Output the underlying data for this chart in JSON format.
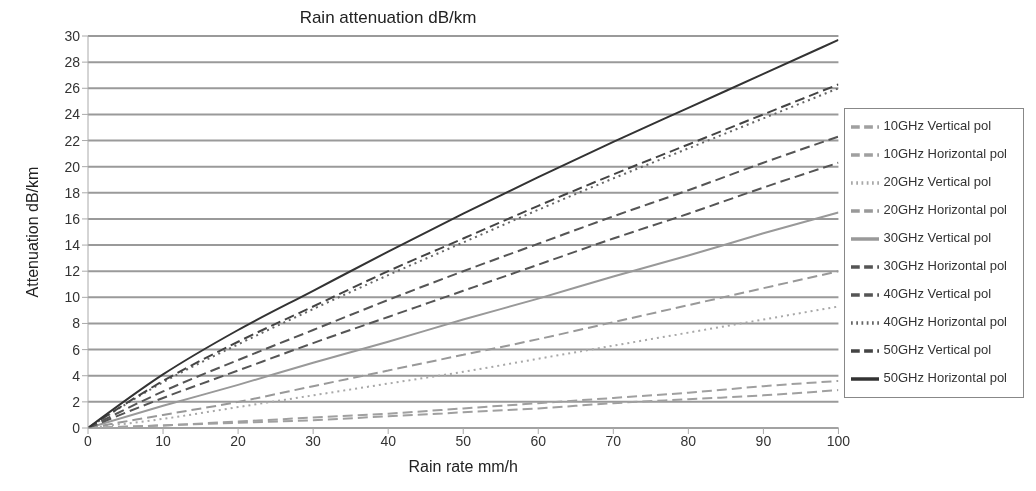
{
  "chart_data": {
    "type": "line",
    "title": "Rain attenuation dB/km",
    "xlabel": "Rain rate mm/h",
    "ylabel": "Attenuation dB/km",
    "x": [
      0,
      10,
      20,
      30,
      40,
      50,
      60,
      70,
      80,
      90,
      100
    ],
    "xlim": [
      0,
      100
    ],
    "xticks": [
      0,
      10,
      20,
      30,
      40,
      50,
      60,
      70,
      80,
      90,
      100
    ],
    "ylim": [
      0,
      30
    ],
    "yticks": [
      0,
      2,
      4,
      6,
      8,
      10,
      12,
      14,
      16,
      18,
      20,
      22,
      24,
      26,
      28,
      30
    ],
    "grid": "y",
    "legend": "right",
    "marker": "none",
    "series": [
      {
        "name": "10GHz Vertical pol",
        "color": "#a0a0a0",
        "line_style": "dashed",
        "values": [
          0,
          0.2,
          0.4,
          0.6,
          0.9,
          1.2,
          1.5,
          1.9,
          2.2,
          2.5,
          2.9
        ]
      },
      {
        "name": "10GHz Horizontal pol",
        "color": "#a0a0a0",
        "line_style": "dashed",
        "values": [
          0,
          0.2,
          0.5,
          0.8,
          1.1,
          1.5,
          1.9,
          2.3,
          2.7,
          3.2,
          3.6
        ]
      },
      {
        "name": "20GHz Vertical pol",
        "color": "#a8a8a8",
        "line_style": "dotted",
        "values": [
          0,
          0.7,
          1.6,
          2.5,
          3.4,
          4.3,
          5.3,
          6.3,
          7.3,
          8.3,
          9.3
        ]
      },
      {
        "name": "20GHz Horizontal pol",
        "color": "#999999",
        "line_style": "dashed",
        "values": [
          0,
          1.0,
          2.0,
          3.2,
          4.4,
          5.6,
          6.8,
          8.1,
          9.4,
          10.7,
          12.0
        ]
      },
      {
        "name": "30GHz Vertical pol",
        "color": "#999999",
        "line_style": "solid",
        "values": [
          0,
          1.7,
          3.3,
          5.0,
          6.6,
          8.3,
          9.9,
          11.6,
          13.2,
          14.9,
          16.5
        ]
      },
      {
        "name": "30GHz Horizontal pol",
        "color": "#555555",
        "line_style": "dashed",
        "values": [
          0,
          2.3,
          4.4,
          6.5,
          8.5,
          10.5,
          12.5,
          14.5,
          16.4,
          18.4,
          20.3
        ]
      },
      {
        "name": "40GHz Vertical pol",
        "color": "#555555",
        "line_style": "dashed",
        "values": [
          0,
          2.8,
          5.2,
          7.5,
          9.8,
          12.0,
          14.1,
          16.2,
          18.2,
          20.3,
          22.3
        ]
      },
      {
        "name": "40GHz Horizontal pol",
        "color": "#666666",
        "line_style": "dotted",
        "values": [
          0,
          3.5,
          6.4,
          9.1,
          11.7,
          14.2,
          16.7,
          19.1,
          21.4,
          23.7,
          26.0
        ]
      },
      {
        "name": "50GHz Vertical pol",
        "color": "#444444",
        "line_style": "dashed",
        "values": [
          0,
          3.6,
          6.6,
          9.3,
          12.0,
          14.5,
          17.0,
          19.4,
          21.7,
          24.0,
          26.3
        ]
      },
      {
        "name": "50GHz Horizontal pol",
        "color": "#333333",
        "line_style": "solid",
        "values": [
          0,
          4.1,
          7.5,
          10.5,
          13.5,
          16.4,
          19.2,
          21.9,
          24.5,
          27.1,
          29.7
        ]
      }
    ]
  }
}
